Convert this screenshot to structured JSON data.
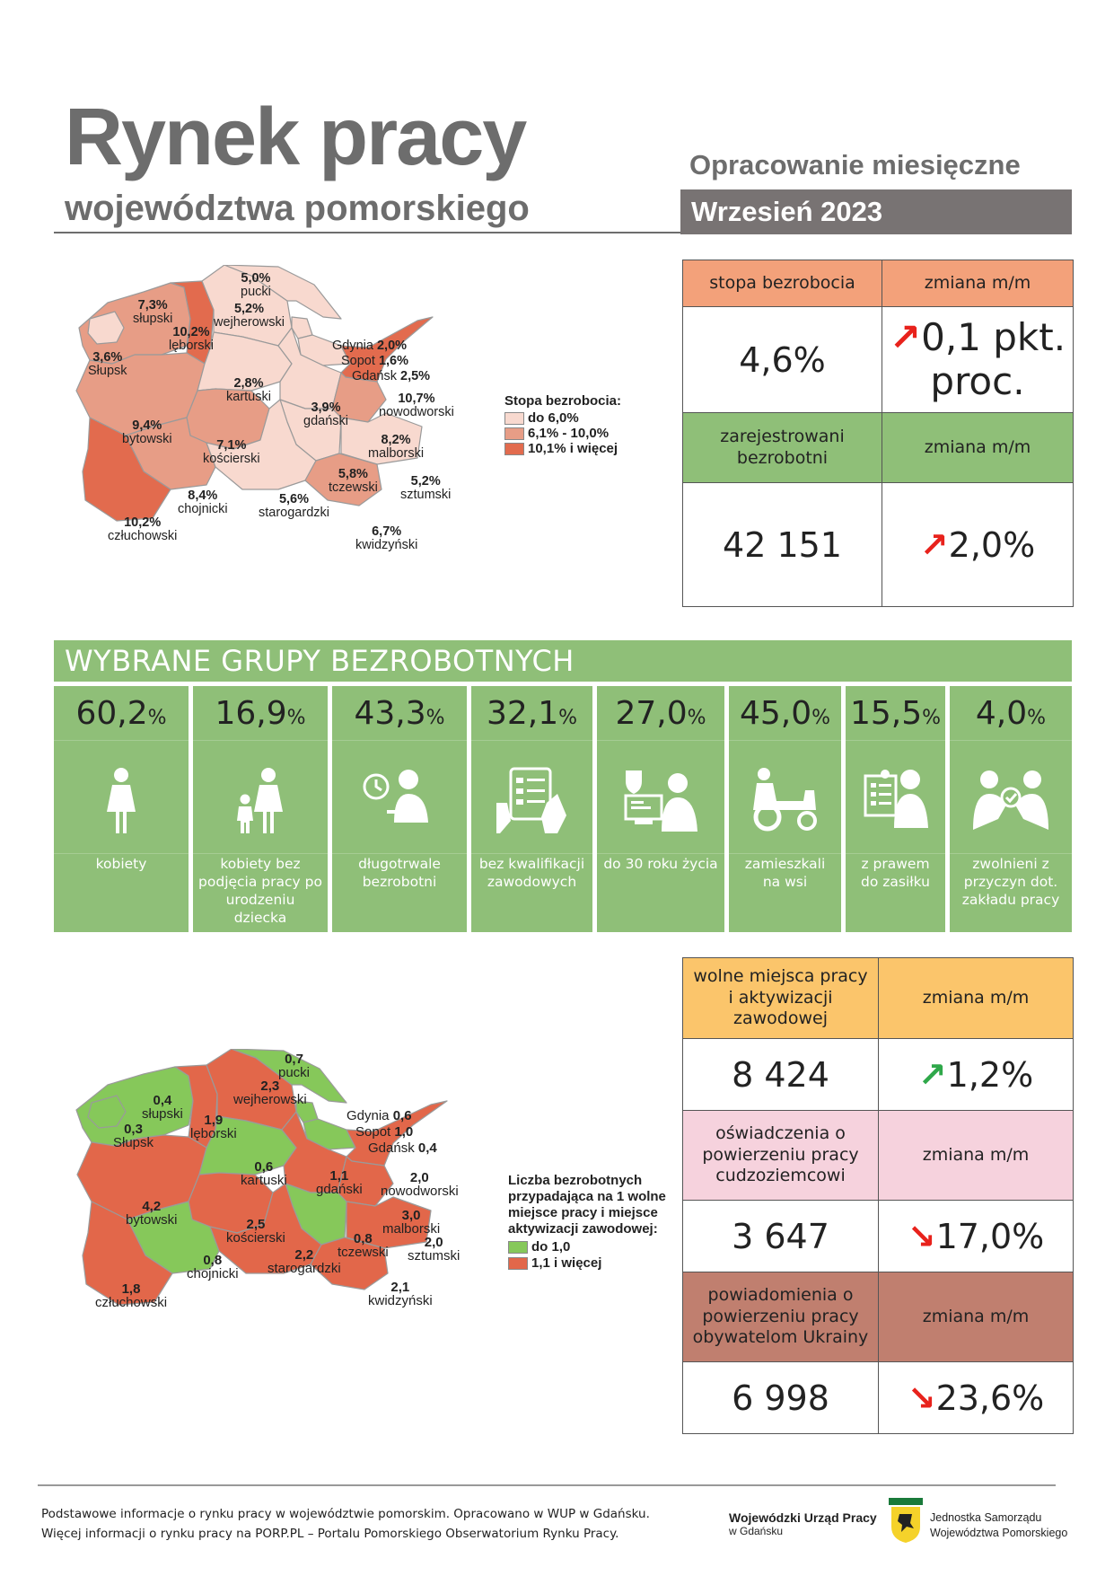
{
  "header": {
    "title": "Rynek pracy",
    "subtitle": "województwa pomorskiego",
    "report_type": "Opracowanie miesięczne",
    "period": "Wrzesień 2023"
  },
  "colors": {
    "salmon": "#f3a17a",
    "green": "#8fbf78",
    "yellow": "#fbc56b",
    "pink": "#f6d2dd",
    "brown": "#c07f6f",
    "arrow_red": "#e8221c",
    "arrow_green": "#2fa84a"
  },
  "unemployment": {
    "rate_label": "stopa bezrobocia",
    "rate_value": "4,6%",
    "change_label": "zmiana m/m",
    "rate_change": "0,1 pkt. proc.",
    "registered_label": "zarejestrowani bezrobotni",
    "registered_value": "42 151",
    "registered_change": "2,0%"
  },
  "map1": {
    "legend_title": "Stopa bezrobocia:",
    "legend_items": [
      "do 6,0%",
      "6,1% - 10,0%",
      "10,1% i więcej"
    ],
    "legend_colors": [
      "#f8d9cf",
      "#e79d86",
      "#e26b4e"
    ],
    "districts": [
      {
        "name": "pucki",
        "value": "5,0%"
      },
      {
        "name": "słupski",
        "value": "7,3%"
      },
      {
        "name": "wejherowski",
        "value": "5,2%"
      },
      {
        "name": "lęborski",
        "value": "10,2%"
      },
      {
        "name": "Słupsk",
        "value": "3,6%"
      },
      {
        "name": "Gdynia",
        "value": "2,0%"
      },
      {
        "name": "Sopot",
        "value": "1,6%"
      },
      {
        "name": "Gdańsk",
        "value": "2,5%"
      },
      {
        "name": "kartuski",
        "value": "2,8%"
      },
      {
        "name": "nowodworski",
        "value": "10,7%"
      },
      {
        "name": "bytowski",
        "value": "9,4%"
      },
      {
        "name": "gdański",
        "value": "3,9%"
      },
      {
        "name": "kościerski",
        "value": "7,1%"
      },
      {
        "name": "malborski",
        "value": "8,2%"
      },
      {
        "name": "tczewski",
        "value": "5,8%"
      },
      {
        "name": "sztumski",
        "value": "5,2%"
      },
      {
        "name": "chojnicki",
        "value": "8,4%"
      },
      {
        "name": "starogardzki",
        "value": "5,6%"
      },
      {
        "name": "człuchowski",
        "value": "10,2%"
      },
      {
        "name": "kwidzyński",
        "value": "6,7%"
      }
    ]
  },
  "groups": {
    "title": "WYBRANE GRUPY BEZROBOTNYCH",
    "percent_sign": "%",
    "items": [
      {
        "value": "60,2",
        "label": "kobiety",
        "icon": "woman-icon"
      },
      {
        "value": "16,9",
        "label": "kobiety bez podjęcia pracy po urodzeniu dziecka",
        "icon": "mother-child-icon"
      },
      {
        "value": "43,3",
        "label": "długotrwale bezrobotni",
        "icon": "clock-person-icon"
      },
      {
        "value": "32,1",
        "label": "bez kwalifikacji zawodowych",
        "icon": "checklist-hand-icon"
      },
      {
        "value": "27,0",
        "label": "do 30 roku życia",
        "icon": "young-person-computer-icon"
      },
      {
        "value": "45,0",
        "label": "zamieszkali na wsi",
        "icon": "tractor-icon"
      },
      {
        "value": "15,5",
        "label": "z prawem do zasiłku",
        "icon": "benefit-document-icon"
      },
      {
        "value": "4,0",
        "label": "zwolnieni z przyczyn dot. zakładu pracy",
        "icon": "dismissal-icon"
      }
    ]
  },
  "offers": {
    "vacancies_label": "wolne miejsca pracy i aktywizacji zawodowej",
    "change_label": "zmiana m/m",
    "vacancies_value": "8 424",
    "vacancies_change": "1,2%",
    "declarations_label": "oświadczenia o powierzeniu pracy cudzoziemcowi",
    "declarations_value": "3 647",
    "declarations_change": "17,0%",
    "notifications_label": "powiadomienia o powierzeniu pracy obywatelom Ukrainy",
    "notifications_value": "6 998",
    "notifications_change": "23,6%"
  },
  "map2": {
    "legend_title": "Liczba bezrobotnych przypadająca na 1 wolne miejsce pracy i miejsce aktywizacji zawodowej:",
    "legend_items": [
      "do 1,0",
      "1,1 i więcej"
    ],
    "legend_colors": [
      "#86c85a",
      "#e2674a"
    ],
    "districts": [
      {
        "name": "pucki",
        "value": "0,7"
      },
      {
        "name": "słupski",
        "value": "0,4"
      },
      {
        "name": "wejherowski",
        "value": "2,3"
      },
      {
        "name": "Słupsk",
        "value": "0,3"
      },
      {
        "name": "lęborski",
        "value": "1,9"
      },
      {
        "name": "Gdynia",
        "value": "0,6"
      },
      {
        "name": "Sopot",
        "value": "1,0"
      },
      {
        "name": "Gdańsk",
        "value": "0,4"
      },
      {
        "name": "kartuski",
        "value": "0,6"
      },
      {
        "name": "gdański",
        "value": "1,1"
      },
      {
        "name": "nowodworski",
        "value": "2,0"
      },
      {
        "name": "bytowski",
        "value": "4,2"
      },
      {
        "name": "kościerski",
        "value": "2,5"
      },
      {
        "name": "malborski",
        "value": "3,0"
      },
      {
        "name": "tczewski",
        "value": "0,8"
      },
      {
        "name": "sztumski",
        "value": "2,0"
      },
      {
        "name": "chojnicki",
        "value": "0,8"
      },
      {
        "name": "starogardzki",
        "value": "2,2"
      },
      {
        "name": "człuchowski",
        "value": "1,8"
      },
      {
        "name": "kwidzyński",
        "value": "2,1"
      }
    ]
  },
  "footer": {
    "line1": "Podstawowe informacje o rynku pracy w województwie pomorskim. Opracowano w WUP w Gdańsku.",
    "line2": "Więcej informacji o rynku pracy na PORP.PL – Portalu Pomorskiego Obserwatorium Rynku Pracy.",
    "logo1_name": "Wojewódzki Urząd Pracy",
    "logo1_sub": "w Gdańsku",
    "logo2_line1": "Jednostka Samorządu",
    "logo2_line2": "Województwa Pomorskiego"
  }
}
